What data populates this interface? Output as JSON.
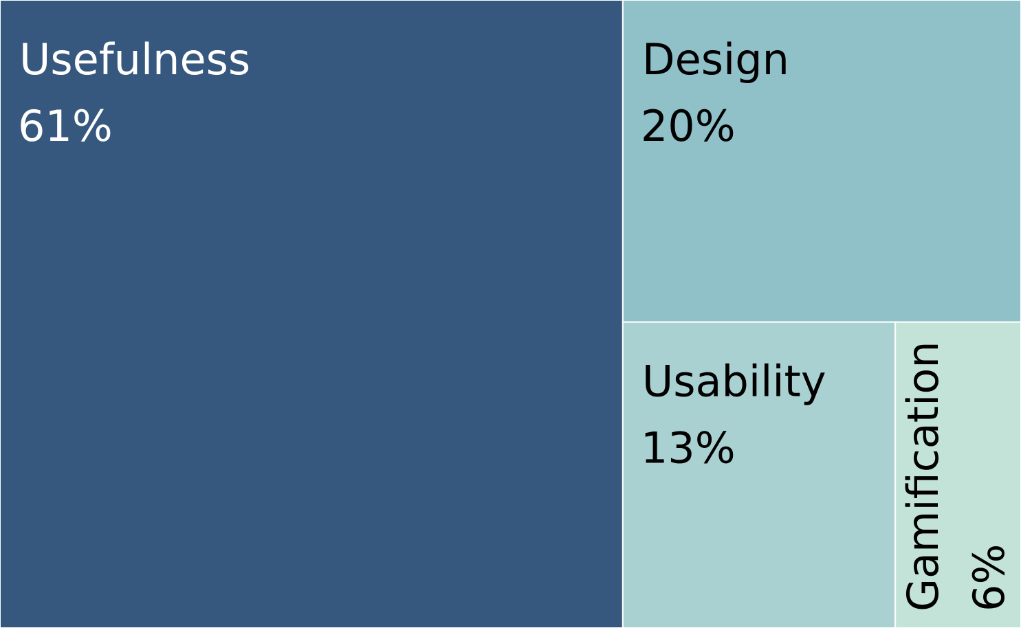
{
  "chart_data": {
    "type": "treemap",
    "title": "",
    "items": [
      {
        "label": "Usefulness",
        "value_label": "61%",
        "value": 61,
        "color": "#36577e",
        "text_color": "#ffffff"
      },
      {
        "label": "Design",
        "value_label": "20%",
        "value": 20,
        "color": "#90c1c9",
        "text_color": "#000000"
      },
      {
        "label": "Usability",
        "value_label": "13%",
        "value": 13,
        "color": "#aad1d2",
        "text_color": "#000000"
      },
      {
        "label": "Gamification",
        "value_label": "6%",
        "value": 6,
        "color": "#c3e3d9",
        "text_color": "#000000"
      }
    ]
  }
}
